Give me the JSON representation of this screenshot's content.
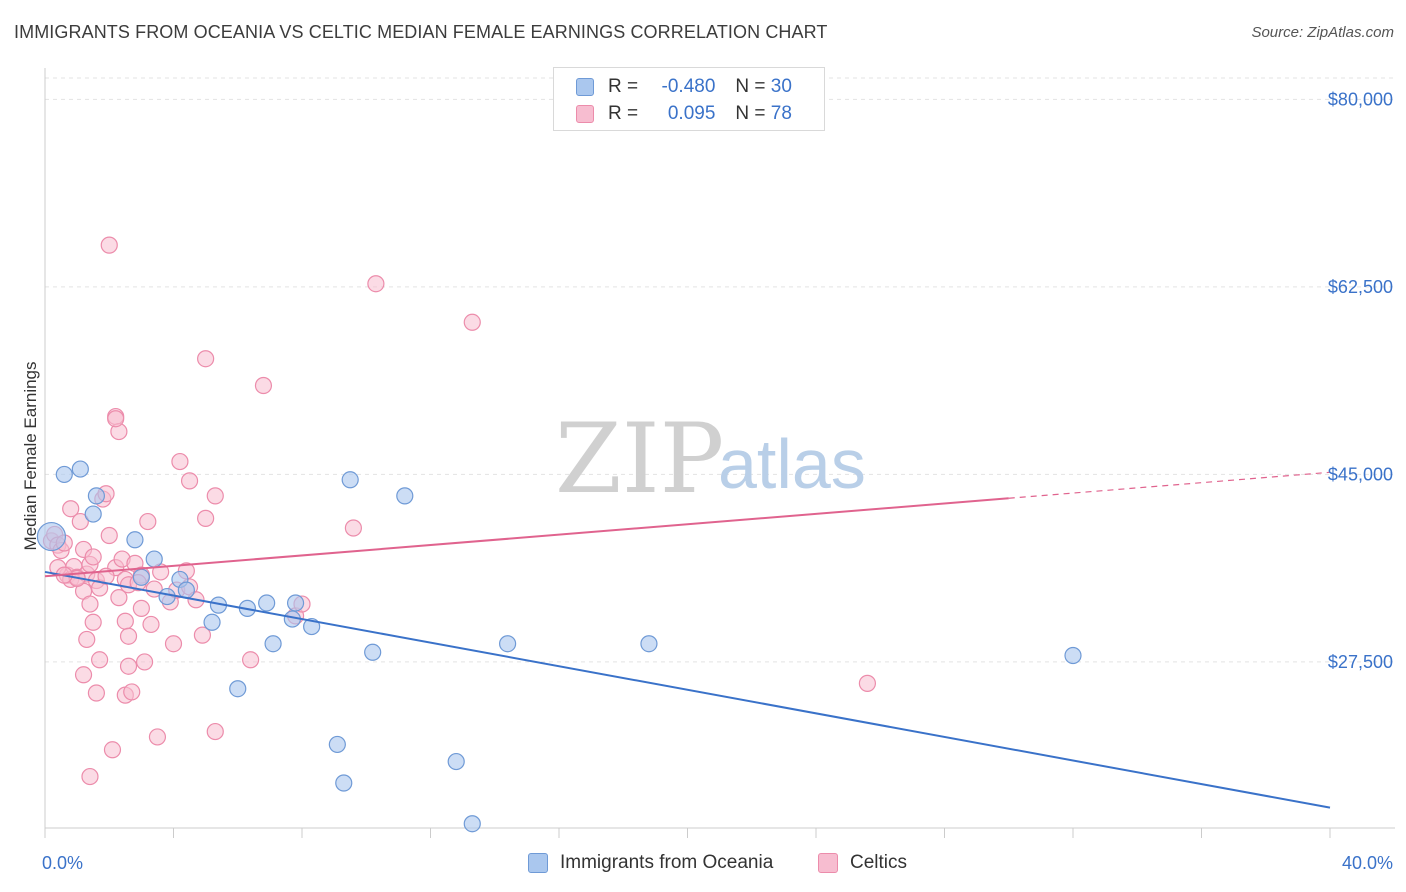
{
  "title": "IMMIGRANTS FROM OCEANIA VS CELTIC MEDIAN FEMALE EARNINGS CORRELATION CHART",
  "source": "Source: ZipAtlas.com",
  "watermark": {
    "zip": "ZIP",
    "atlas": "atlas"
  },
  "colors": {
    "blue": "#3a72c9",
    "blue_fill": "#aac7ee",
    "blue_stroke": "#6f9ad6",
    "pink": "#e0638e",
    "pink_fill": "#f7bdd0",
    "pink_stroke": "#ec8cab"
  },
  "legend": {
    "rows": [
      {
        "r_label": "R =",
        "r_value": "-0.480",
        "n_label": "N =",
        "n_value": "30"
      },
      {
        "r_label": "R =",
        "r_value": "0.095",
        "n_label": "N =",
        "n_value": "78"
      }
    ]
  },
  "bottom_legend": {
    "series1": "Immigrants from Oceania",
    "series2": "Celtics"
  },
  "chart_data": {
    "type": "scatter",
    "ylabel": "Median Female Earnings",
    "xlabel": "",
    "x_tick_labels": {
      "left": "0.0%",
      "right": "40.0%"
    },
    "xlim": [
      0,
      40
    ],
    "ylim": [
      12000,
      82000
    ],
    "y_ticks": [
      {
        "value": 80000,
        "label": "$80,000"
      },
      {
        "value": 62500,
        "label": "$62,500"
      },
      {
        "value": 45000,
        "label": "$45,000"
      },
      {
        "value": 27500,
        "label": "$27,500"
      }
    ],
    "series": [
      {
        "name": "Immigrants from Oceania",
        "color": "#3a72c9",
        "trend": {
          "x0": 0,
          "y0": 35900,
          "x1": 40,
          "y1": 13900,
          "dashed_from": null
        },
        "points": [
          [
            0.2,
            39200
          ],
          [
            0.6,
            45000
          ],
          [
            1.1,
            45500
          ],
          [
            1.6,
            43000
          ],
          [
            1.5,
            41300
          ],
          [
            2.8,
            38900
          ],
          [
            3.4,
            37100
          ],
          [
            3.0,
            35400
          ],
          [
            4.2,
            35200
          ],
          [
            4.4,
            34200
          ],
          [
            3.8,
            33600
          ],
          [
            5.4,
            32800
          ],
          [
            6.3,
            32500
          ],
          [
            6.9,
            33000
          ],
          [
            7.8,
            33000
          ],
          [
            5.2,
            31200
          ],
          [
            7.7,
            31500
          ],
          [
            8.3,
            30800
          ],
          [
            7.1,
            29200
          ],
          [
            10.2,
            28400
          ],
          [
            14.4,
            29200
          ],
          [
            18.8,
            29200
          ],
          [
            32.0,
            28100
          ],
          [
            6.0,
            25000
          ],
          [
            9.5,
            44500
          ],
          [
            11.2,
            43000
          ],
          [
            9.1,
            19800
          ],
          [
            9.3,
            16200
          ],
          [
            12.8,
            18200
          ],
          [
            13.3,
            12400
          ]
        ]
      },
      {
        "name": "Celtics",
        "color": "#e0638e",
        "trend": {
          "x0": 0,
          "y0": 35500,
          "x1": 40,
          "y1": 45200,
          "dashed_from": 30
        },
        "points": [
          [
            0.2,
            38800
          ],
          [
            0.3,
            39400
          ],
          [
            0.4,
            38400
          ],
          [
            0.5,
            37900
          ],
          [
            0.6,
            38600
          ],
          [
            0.7,
            35600
          ],
          [
            0.8,
            35200
          ],
          [
            0.9,
            36400
          ],
          [
            1.0,
            35400
          ],
          [
            1.2,
            38000
          ],
          [
            1.3,
            35700
          ],
          [
            1.4,
            36600
          ],
          [
            1.5,
            37300
          ],
          [
            1.6,
            35100
          ],
          [
            1.7,
            34400
          ],
          [
            0.8,
            41800
          ],
          [
            1.1,
            40600
          ],
          [
            1.8,
            42700
          ],
          [
            1.9,
            43200
          ],
          [
            2.0,
            39300
          ],
          [
            2.2,
            36300
          ],
          [
            2.4,
            37100
          ],
          [
            2.5,
            35200
          ],
          [
            2.6,
            34700
          ],
          [
            2.8,
            36700
          ],
          [
            3.0,
            35600
          ],
          [
            3.2,
            40600
          ],
          [
            3.4,
            34300
          ],
          [
            3.6,
            35900
          ],
          [
            3.9,
            33100
          ],
          [
            4.1,
            34200
          ],
          [
            4.4,
            36000
          ],
          [
            4.5,
            34500
          ],
          [
            4.7,
            33300
          ],
          [
            5.0,
            40900
          ],
          [
            5.3,
            43000
          ],
          [
            1.2,
            34100
          ],
          [
            1.4,
            32900
          ],
          [
            1.5,
            31200
          ],
          [
            1.3,
            29600
          ],
          [
            1.7,
            27700
          ],
          [
            1.6,
            24600
          ],
          [
            1.2,
            26300
          ],
          [
            2.3,
            33500
          ],
          [
            2.5,
            31300
          ],
          [
            2.6,
            29900
          ],
          [
            2.6,
            27100
          ],
          [
            3.0,
            32500
          ],
          [
            3.1,
            27500
          ],
          [
            2.5,
            24400
          ],
          [
            2.7,
            24700
          ],
          [
            3.3,
            31000
          ],
          [
            4.0,
            29200
          ],
          [
            4.9,
            30000
          ],
          [
            6.4,
            27700
          ],
          [
            7.8,
            31800
          ],
          [
            8.0,
            32900
          ],
          [
            5.3,
            21000
          ],
          [
            3.5,
            20500
          ],
          [
            2.1,
            19300
          ],
          [
            1.4,
            16800
          ],
          [
            2.2,
            50400
          ],
          [
            2.3,
            49000
          ],
          [
            2.2,
            50200
          ],
          [
            4.2,
            46200
          ],
          [
            4.5,
            44400
          ],
          [
            5.0,
            55800
          ],
          [
            6.8,
            53300
          ],
          [
            10.3,
            62800
          ],
          [
            13.3,
            59200
          ],
          [
            2.0,
            66400
          ],
          [
            9.6,
            40000
          ],
          [
            25.6,
            25500
          ],
          [
            1.0,
            35300
          ],
          [
            0.4,
            36300
          ],
          [
            0.6,
            35600
          ],
          [
            1.9,
            35500
          ],
          [
            2.9,
            34900
          ]
        ]
      }
    ]
  }
}
